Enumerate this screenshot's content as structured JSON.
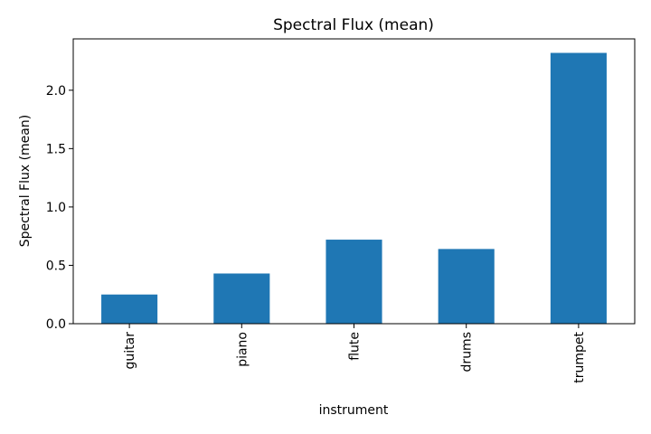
{
  "chart_data": {
    "type": "bar",
    "title": "Spectral Flux (mean)",
    "xlabel": "instrument",
    "ylabel": "Spectral Flux (mean)",
    "categories": [
      "guitar",
      "piano",
      "flute",
      "drums",
      "trumpet"
    ],
    "values": [
      0.25,
      0.43,
      0.72,
      0.64,
      2.32
    ],
    "ylim": [
      0,
      2.44
    ],
    "yticks": [
      0.0,
      0.5,
      1.0,
      1.5,
      2.0
    ],
    "ytick_labels": [
      "0.0",
      "0.5",
      "1.0",
      "1.5",
      "2.0"
    ],
    "grid": false,
    "bar_color": "#1f77b4"
  }
}
